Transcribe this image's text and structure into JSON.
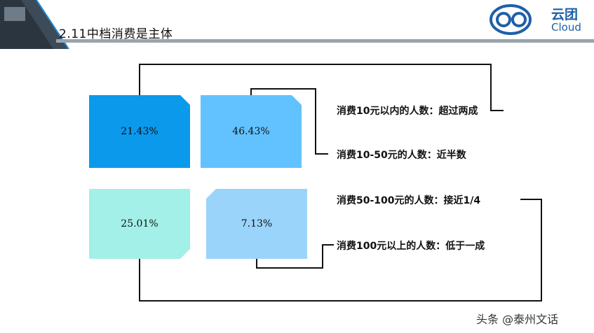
{
  "header": {
    "title": "2.11中档消费是主体",
    "logo_cn": "云团",
    "logo_en": "Cloud"
  },
  "boxes": [
    {
      "value": "21.43%",
      "color": "#0b99ec"
    },
    {
      "value": "46.43%",
      "color": "#62c2ff"
    },
    {
      "value": "25.01%",
      "color": "#a2f0e8"
    },
    {
      "value": "7.13%",
      "color": "#9ad4fb"
    }
  ],
  "labels": [
    "消费10元以内的人数：超过两成",
    "消费10-50元的人数：近半数",
    "消费50-100元的人数：接近1/4",
    "消费100元以上的人数：低于一成"
  ],
  "watermark": "头条 @泰州文话"
}
